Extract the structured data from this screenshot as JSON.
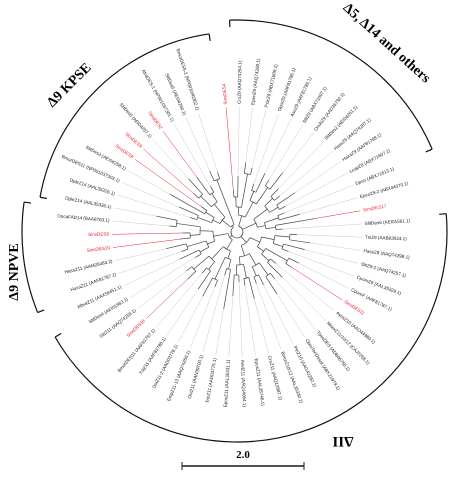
{
  "figure": {
    "clade_labels": [
      {
        "id": "kpse",
        "text": "Δ9 KPSE"
      },
      {
        "id": "d5",
        "text": "Δ5, Δ14 and others"
      },
      {
        "id": "npve",
        "text": "Δ9 NPVE"
      },
      {
        "id": "z11",
        "text": "ΔII"
      }
    ],
    "scale_bar_label": "2.0",
    "colors": {
      "highlight": "#e8202a",
      "normal": "#1a1a1a",
      "branch": "#444444",
      "guide": "#c8c8c8"
    },
    "leaves": [
      {
        "text": "SinsDES4",
        "red": true
      },
      {
        "text": "CroZ9 (AAQ74254.1)",
        "red": false
      },
      {
        "text": "EpenZ9 (AAQ74260.1)",
        "red": false
      },
      {
        "text": "PsicZ9 (ABX71609.1)",
        "red": false
      },
      {
        "text": "OporZ9 (AAF81786.1)",
        "red": false
      },
      {
        "text": "AsoZ9 (AAF81785.1)",
        "red": false
      },
      {
        "text": "SlitZ9 (ABX71607.1)",
        "red": false
      },
      {
        "text": "OnubZ9 (AAD36792.1)",
        "red": false
      },
      {
        "text": "SlitDes2 (AEI04261.1)",
        "red": false
      },
      {
        "text": "HassZ9 (AAQ74287.1)",
        "red": false
      },
      {
        "text": "HaxaZ9 (AAF81788.1)",
        "red": false
      },
      {
        "text": "LcapZ9 (ABX71607.1)",
        "red": false
      },
      {
        "text": "Dpun (ABX71613.1)",
        "red": false
      },
      {
        "text": "EpcoZ9-2 (ABX44070.1)",
        "red": false
      },
      {
        "text": "SinsDES17",
        "red": true
      },
      {
        "text": "SlitDes6 (AEI01561.1)",
        "red": false
      },
      {
        "text": "TniZ9 (AAB83024.1)",
        "red": false
      },
      {
        "text": "HassZ9 (AAQ74299.1)",
        "red": false
      },
      {
        "text": "SlitZ9-2 (AAQ74257.1)",
        "red": false
      },
      {
        "text": "CpomZ9 (AAL35329.1)",
        "red": false
      },
      {
        "text": "CpomF (AAF81787.1)",
        "red": false
      },
      {
        "text": "SinsDES11",
        "red": true
      },
      {
        "text": "AyosZ10 (AAO44980.1)",
        "red": false
      },
      {
        "text": "MsexZ11/10/12 (CAJ2258.1)",
        "red": false
      },
      {
        "text": "TpseDES (ADB06755.1)",
        "red": false
      },
      {
        "text": "ObruTenDesat (ABK21979.1)",
        "red": false
      },
      {
        "text": "PtriZ10 (AAG43282.1)",
        "red": false
      },
      {
        "text": "BmorZ10/12 (AAL35330.1)",
        "red": false
      },
      {
        "text": "CroZ11 (AAQ12887.1)",
        "red": false
      },
      {
        "text": "EposZ11 (AAL35746.1)",
        "red": false
      },
      {
        "text": "AvelZ11 (AAQ14064.1)",
        "red": false
      },
      {
        "text": "EposZ11 (AAL35331.1)",
        "red": false
      },
      {
        "text": "TrinZ11 (AAD03775.1)",
        "red": false
      },
      {
        "text": "OniZ11 (AAN39700.1)",
        "red": false
      },
      {
        "text": "EmpZ11-13 (AAQ74259.1)",
        "red": false
      },
      {
        "text": "DstZ11-2 (AAD03776.1)",
        "red": false
      },
      {
        "text": "TniZ11 (AAF81788.1)",
        "red": false
      },
      {
        "text": "BmorDES11 (AAF81787.1)",
        "red": false
      },
      {
        "text": "SinsDES18",
        "red": true
      },
      {
        "text": "SlitZ11 (AAQ74258.1)",
        "red": false
      },
      {
        "text": "SlitDes4 (AEI01563.1)",
        "red": false
      },
      {
        "text": "MbraZ11 (AAX59451.1)",
        "red": false
      },
      {
        "text": "HaxaZ11 (AAF81787.1)",
        "red": false
      },
      {
        "text": "HassZ11 (AAM28483.2)",
        "red": false
      },
      {
        "text": "SinsDES10",
        "red": true
      },
      {
        "text": "SinsDES6",
        "red": true
      },
      {
        "text": "OscaFAD14 (BAA8763.1)",
        "red": false
      },
      {
        "text": "DpleZ14 (AAL35330.1)",
        "red": false
      },
      {
        "text": "DpleZ14 (AAL35326.1)",
        "red": false
      },
      {
        "text": "BmorDES11 (NP001037303.1)",
        "red": false
      },
      {
        "text": "SlitDes3 (AEI04258.1)",
        "red": false
      },
      {
        "text": "SinsDES8",
        "red": true
      },
      {
        "text": "SinsDES9",
        "red": true
      },
      {
        "text": "SlitDes5 (AEI04257.1)",
        "red": false
      },
      {
        "text": "SinsDES2",
        "red": true
      },
      {
        "text": "AtraDES-1 (NP001037301.1)",
        "red": false
      },
      {
        "text": "SlitDes5 (AEI04260.1)",
        "red": false
      },
      {
        "text": "BmorDES5-2 (NP001040302.1)",
        "red": false
      }
    ]
  }
}
